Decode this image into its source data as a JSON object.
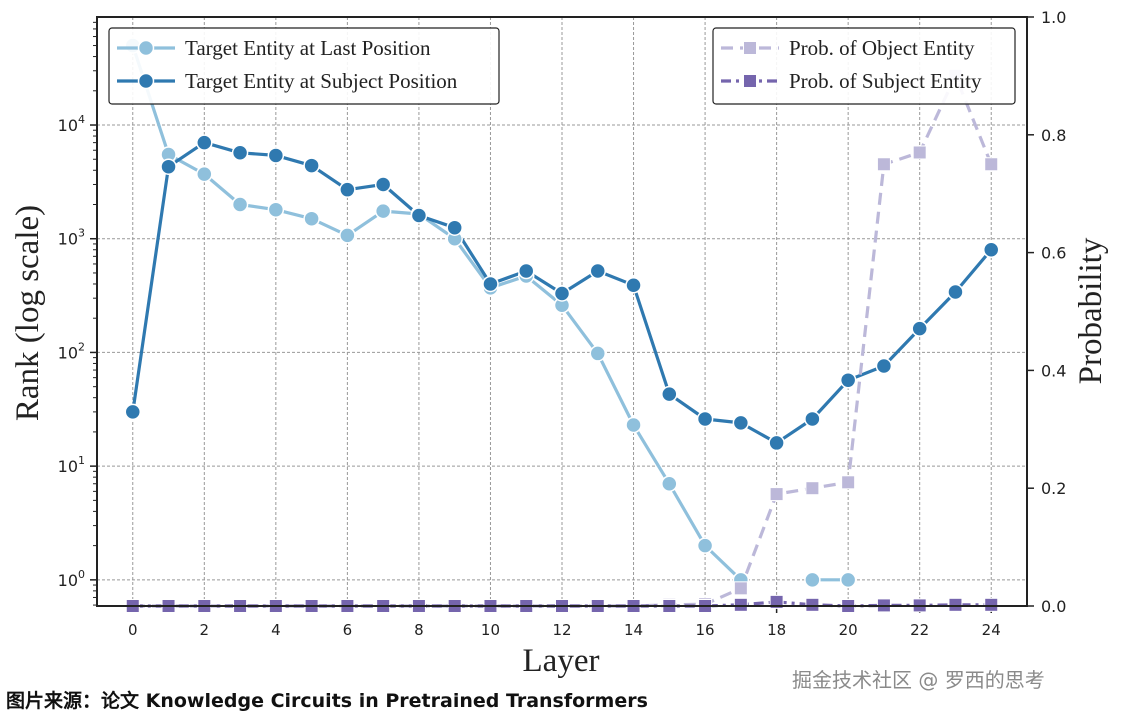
{
  "chart_data": {
    "type": "line",
    "xlabel": "Layer",
    "ylabel_left": "Rank (log scale)",
    "ylabel_right": "Probability",
    "x_ticks": [
      0,
      2,
      4,
      6,
      8,
      10,
      12,
      14,
      16,
      18,
      20,
      22,
      24
    ],
    "xlim": [
      -1,
      25
    ],
    "y_left_scale": "log",
    "y_left_ticks": [
      {
        "value": 1,
        "base": "10",
        "exp": "0"
      },
      {
        "value": 10,
        "base": "10",
        "exp": "1"
      },
      {
        "value": 100,
        "base": "10",
        "exp": "2"
      },
      {
        "value": 1000,
        "base": "10",
        "exp": "3"
      },
      {
        "value": 10000,
        "base": "10",
        "exp": "4"
      }
    ],
    "y_left_range_log10": [
      -0.23,
      4.95
    ],
    "y_right_ticks": [
      "0.0",
      "0.2",
      "0.4",
      "0.6",
      "0.8",
      "1.0"
    ],
    "y_right_range": [
      0,
      1
    ],
    "grid": true,
    "series": [
      {
        "name": "Target Entity at Last Position",
        "axis": "left",
        "color": "#8fc0dc",
        "style": "solid",
        "marker": "circle",
        "x": [
          0,
          1,
          2,
          3,
          4,
          5,
          6,
          7,
          8,
          9,
          10,
          11,
          12,
          13,
          14,
          15,
          16,
          17,
          19,
          20
        ],
        "y": [
          50000,
          5500,
          3700,
          2000,
          1800,
          1500,
          1070,
          1750,
          1650,
          1000,
          370,
          470,
          260,
          98,
          23,
          7,
          2,
          1,
          1,
          1
        ]
      },
      {
        "name": "Target Entity at Subject Position",
        "axis": "left",
        "color": "#2f79b0",
        "style": "solid",
        "marker": "circle",
        "x": [
          0,
          1,
          2,
          3,
          4,
          5,
          6,
          7,
          8,
          9,
          10,
          11,
          12,
          13,
          14,
          15,
          16,
          17,
          18,
          19,
          20,
          21,
          22,
          23,
          24
        ],
        "y": [
          30,
          4300,
          7000,
          5700,
          5400,
          4400,
          2700,
          3000,
          1600,
          1250,
          400,
          520,
          330,
          520,
          390,
          43,
          26,
          24,
          16,
          26,
          57,
          76,
          162,
          340,
          800
        ]
      },
      {
        "name": "Prob. of Object Entity",
        "axis": "right",
        "color": "#bcb8d9",
        "style": "dashed",
        "marker": "square",
        "x": [
          0,
          1,
          2,
          3,
          4,
          5,
          6,
          7,
          8,
          9,
          10,
          11,
          12,
          13,
          14,
          15,
          16,
          17,
          18,
          19,
          20,
          21,
          22,
          23,
          24
        ],
        "y": [
          0,
          0,
          0,
          0,
          0,
          0,
          0,
          0,
          0,
          0,
          0,
          0,
          0,
          0,
          0,
          0.002,
          0.003,
          0.03,
          0.19,
          0.2,
          0.21,
          0.75,
          0.77,
          0.9,
          0.75
        ]
      },
      {
        "name": "Prob. of Subject Entity",
        "axis": "right",
        "color": "#7565ad",
        "style": "dashdot",
        "marker": "square",
        "x": [
          0,
          1,
          2,
          3,
          4,
          5,
          6,
          7,
          8,
          9,
          10,
          11,
          12,
          13,
          14,
          15,
          16,
          17,
          18,
          19,
          20,
          21,
          22,
          23,
          24
        ],
        "y": [
          0,
          0,
          0,
          0,
          0,
          0,
          0,
          0,
          0,
          0,
          0,
          0,
          0,
          0,
          0,
          0,
          0,
          0.002,
          0.007,
          0.002,
          0,
          0.001,
          0.001,
          0.002,
          0.002
        ]
      }
    ],
    "legends": {
      "top-left": [
        "Target Entity at Last Position",
        "Target Entity at Subject Position"
      ],
      "top-right": [
        "Prob. of Object Entity",
        "Prob. of Subject Entity"
      ]
    }
  },
  "caption": "图片来源：论文 Knowledge Circuits in Pretrained Transformers",
  "watermark": "掘金技术社区 @ 罗西的思考"
}
